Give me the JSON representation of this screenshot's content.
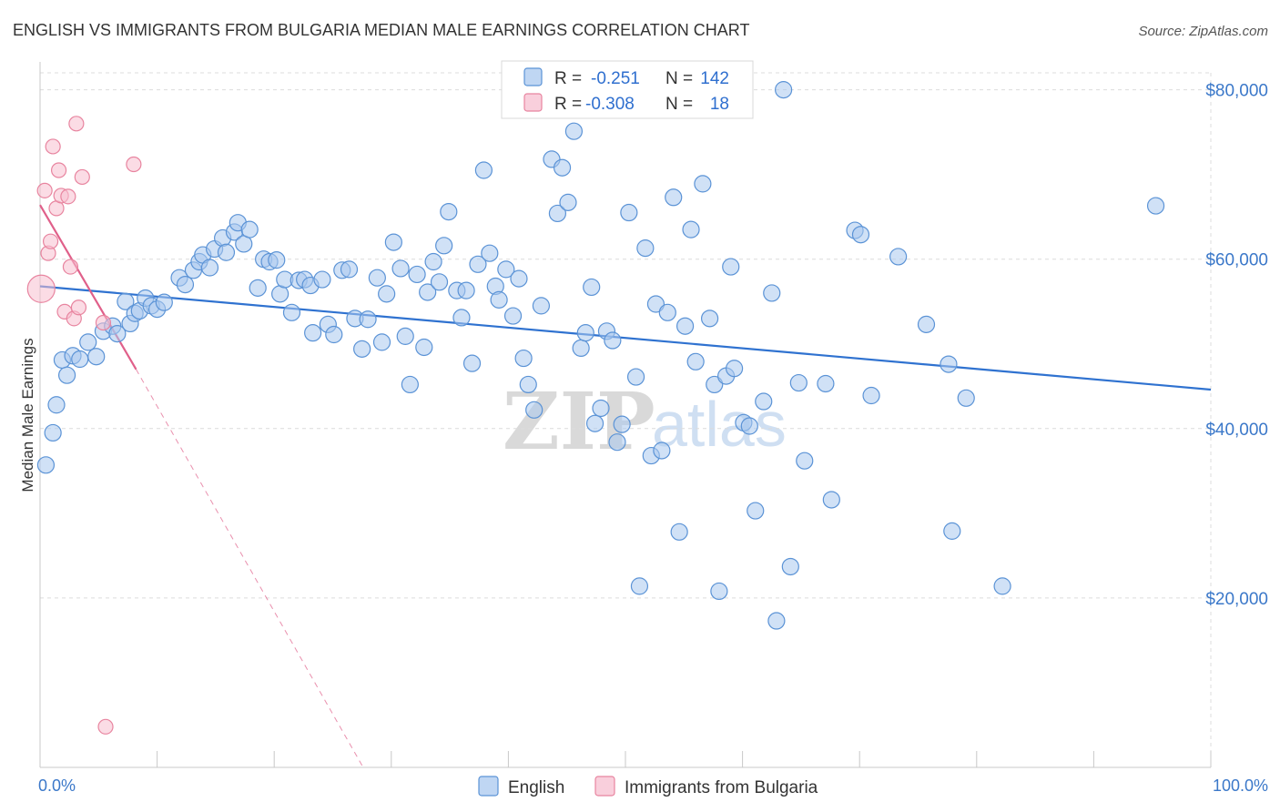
{
  "title": "ENGLISH VS IMMIGRANTS FROM BULGARIA MEDIAN MALE EARNINGS CORRELATION CHART",
  "source": "Source: ZipAtlas.com",
  "watermark": {
    "part1": "ZIP",
    "part2": "atlas"
  },
  "legend_top": {
    "rows": [
      {
        "r_label": "R =",
        "r_value": "-0.251",
        "n_label": "N =",
        "n_value": "142"
      },
      {
        "r_label": "R =",
        "r_value": "-0.308",
        "n_label": "N =",
        "n_value": "18"
      }
    ]
  },
  "legend_bottom": {
    "items": [
      "English",
      "Immigrants from Bulgaria"
    ]
  },
  "colors": {
    "english_fill": "#a9c8ef",
    "english_stroke": "#5b93d6",
    "english_line": "#2f72d0",
    "bulgaria_fill": "#f7bfd0",
    "bulgaria_stroke": "#e8849f",
    "bulgaria_line": "#e0608a",
    "tick_text": "#3b78c9"
  },
  "chart_data": {
    "type": "scatter",
    "title": "ENGLISH VS IMMIGRANTS FROM BULGARIA MEDIAN MALE EARNINGS CORRELATION CHART",
    "xlabel": "",
    "ylabel": "Median Male Earnings",
    "xlim": [
      0,
      100
    ],
    "ylim": [
      0,
      82000
    ],
    "x_tick_labels": [
      "0.0%",
      "100.0%"
    ],
    "y_ticks": [
      20000,
      40000,
      60000,
      80000
    ],
    "y_tick_labels": [
      "$20,000",
      "$40,000",
      "$60,000",
      "$80,000"
    ],
    "grid": true,
    "legend_placement": "top-center",
    "series": [
      {
        "name": "English",
        "r": -0.251,
        "n": 142,
        "trend": {
          "x": [
            0,
            100
          ],
          "y": [
            56800,
            44600
          ]
        },
        "points": [
          [
            0.5,
            35700
          ],
          [
            1.1,
            39500
          ],
          [
            1.4,
            42800
          ],
          [
            1.9,
            48100
          ],
          [
            2.3,
            46300
          ],
          [
            2.8,
            48600
          ],
          [
            3.4,
            48200
          ],
          [
            4.1,
            50200
          ],
          [
            4.8,
            48500
          ],
          [
            5.4,
            51500
          ],
          [
            6.2,
            52100
          ],
          [
            6.6,
            51200
          ],
          [
            7.3,
            55000
          ],
          [
            7.7,
            52400
          ],
          [
            8.1,
            53600
          ],
          [
            8.5,
            53900
          ],
          [
            9.0,
            55400
          ],
          [
            9.5,
            54500
          ],
          [
            10.0,
            54100
          ],
          [
            10.6,
            54900
          ],
          [
            11.9,
            57800
          ],
          [
            12.4,
            57000
          ],
          [
            13.1,
            58700
          ],
          [
            13.6,
            59700
          ],
          [
            13.9,
            60500
          ],
          [
            14.5,
            59000
          ],
          [
            14.9,
            61200
          ],
          [
            15.6,
            62500
          ],
          [
            15.9,
            60800
          ],
          [
            16.6,
            63200
          ],
          [
            16.9,
            64300
          ],
          [
            17.4,
            61800
          ],
          [
            17.9,
            63500
          ],
          [
            18.6,
            56600
          ],
          [
            19.1,
            60000
          ],
          [
            19.6,
            59700
          ],
          [
            20.2,
            59900
          ],
          [
            20.5,
            55900
          ],
          [
            20.9,
            57600
          ],
          [
            21.5,
            53700
          ],
          [
            22.1,
            57500
          ],
          [
            22.6,
            57600
          ],
          [
            23.1,
            56900
          ],
          [
            23.3,
            51300
          ],
          [
            24.1,
            57600
          ],
          [
            24.6,
            52300
          ],
          [
            25.1,
            51100
          ],
          [
            25.8,
            58700
          ],
          [
            26.4,
            58800
          ],
          [
            26.9,
            53000
          ],
          [
            27.5,
            49400
          ],
          [
            28.0,
            52900
          ],
          [
            28.8,
            57800
          ],
          [
            29.2,
            50200
          ],
          [
            29.6,
            55900
          ],
          [
            30.2,
            62000
          ],
          [
            30.8,
            58900
          ],
          [
            31.2,
            50900
          ],
          [
            31.6,
            45200
          ],
          [
            32.2,
            58200
          ],
          [
            32.8,
            49600
          ],
          [
            33.1,
            56100
          ],
          [
            33.6,
            59700
          ],
          [
            34.1,
            57300
          ],
          [
            34.5,
            61600
          ],
          [
            34.9,
            65600
          ],
          [
            35.6,
            56300
          ],
          [
            36.0,
            53100
          ],
          [
            36.4,
            56300
          ],
          [
            36.9,
            47700
          ],
          [
            37.4,
            59400
          ],
          [
            37.9,
            70500
          ],
          [
            38.4,
            60700
          ],
          [
            38.9,
            56800
          ],
          [
            39.2,
            55200
          ],
          [
            39.8,
            58800
          ],
          [
            40.4,
            53300
          ],
          [
            40.9,
            57700
          ],
          [
            41.3,
            48300
          ],
          [
            41.7,
            45200
          ],
          [
            42.2,
            42200
          ],
          [
            42.8,
            54500
          ],
          [
            43.7,
            71800
          ],
          [
            44.2,
            65400
          ],
          [
            44.6,
            70800
          ],
          [
            45.1,
            66700
          ],
          [
            45.6,
            75100
          ],
          [
            46.2,
            49500
          ],
          [
            46.6,
            51300
          ],
          [
            47.1,
            56700
          ],
          [
            47.4,
            40600
          ],
          [
            47.9,
            42400
          ],
          [
            48.4,
            51500
          ],
          [
            48.9,
            50400
          ],
          [
            49.3,
            38400
          ],
          [
            49.7,
            40500
          ],
          [
            50.3,
            65500
          ],
          [
            50.9,
            46100
          ],
          [
            51.2,
            21400
          ],
          [
            51.7,
            61300
          ],
          [
            52.2,
            36800
          ],
          [
            52.6,
            54700
          ],
          [
            53.1,
            37400
          ],
          [
            53.6,
            53700
          ],
          [
            54.1,
            67300
          ],
          [
            54.6,
            27800
          ],
          [
            55.1,
            52100
          ],
          [
            55.6,
            63500
          ],
          [
            56.0,
            47900
          ],
          [
            56.6,
            68900
          ],
          [
            57.2,
            53000
          ],
          [
            57.6,
            45200
          ],
          [
            58.0,
            20800
          ],
          [
            58.6,
            46200
          ],
          [
            59.0,
            59100
          ],
          [
            59.3,
            47100
          ],
          [
            60.1,
            40700
          ],
          [
            60.6,
            40300
          ],
          [
            61.1,
            30300
          ],
          [
            61.8,
            43200
          ],
          [
            62.5,
            56000
          ],
          [
            62.9,
            17300
          ],
          [
            63.5,
            80000
          ],
          [
            64.1,
            23700
          ],
          [
            64.8,
            45400
          ],
          [
            65.3,
            36200
          ],
          [
            67.1,
            45300
          ],
          [
            67.6,
            31600
          ],
          [
            69.6,
            63400
          ],
          [
            70.1,
            62900
          ],
          [
            71.0,
            43900
          ],
          [
            73.3,
            60300
          ],
          [
            75.7,
            52300
          ],
          [
            77.6,
            47600
          ],
          [
            77.9,
            27900
          ],
          [
            79.1,
            43600
          ],
          [
            82.2,
            21400
          ],
          [
            95.3,
            66300
          ]
        ]
      },
      {
        "name": "Immigrants from Bulgaria",
        "r": -0.308,
        "n": 18,
        "trend": {
          "x": [
            0,
            8.2
          ],
          "y": [
            66400,
            47000
          ],
          "dashed_extension": {
            "x": [
              8.2,
              27.6
            ],
            "y": [
              47000,
              0
            ]
          }
        },
        "points": [
          [
            0.1,
            56500
          ],
          [
            0.4,
            68100
          ],
          [
            0.7,
            60700
          ],
          [
            0.9,
            62100
          ],
          [
            1.1,
            73300
          ],
          [
            1.4,
            66000
          ],
          [
            1.6,
            70500
          ],
          [
            1.8,
            67500
          ],
          [
            2.1,
            53800
          ],
          [
            2.4,
            67400
          ],
          [
            2.6,
            59100
          ],
          [
            2.9,
            53000
          ],
          [
            3.1,
            76000
          ],
          [
            3.3,
            54300
          ],
          [
            3.6,
            69700
          ],
          [
            5.4,
            52500
          ],
          [
            5.6,
            4800
          ],
          [
            8.0,
            71200
          ]
        ]
      }
    ]
  }
}
